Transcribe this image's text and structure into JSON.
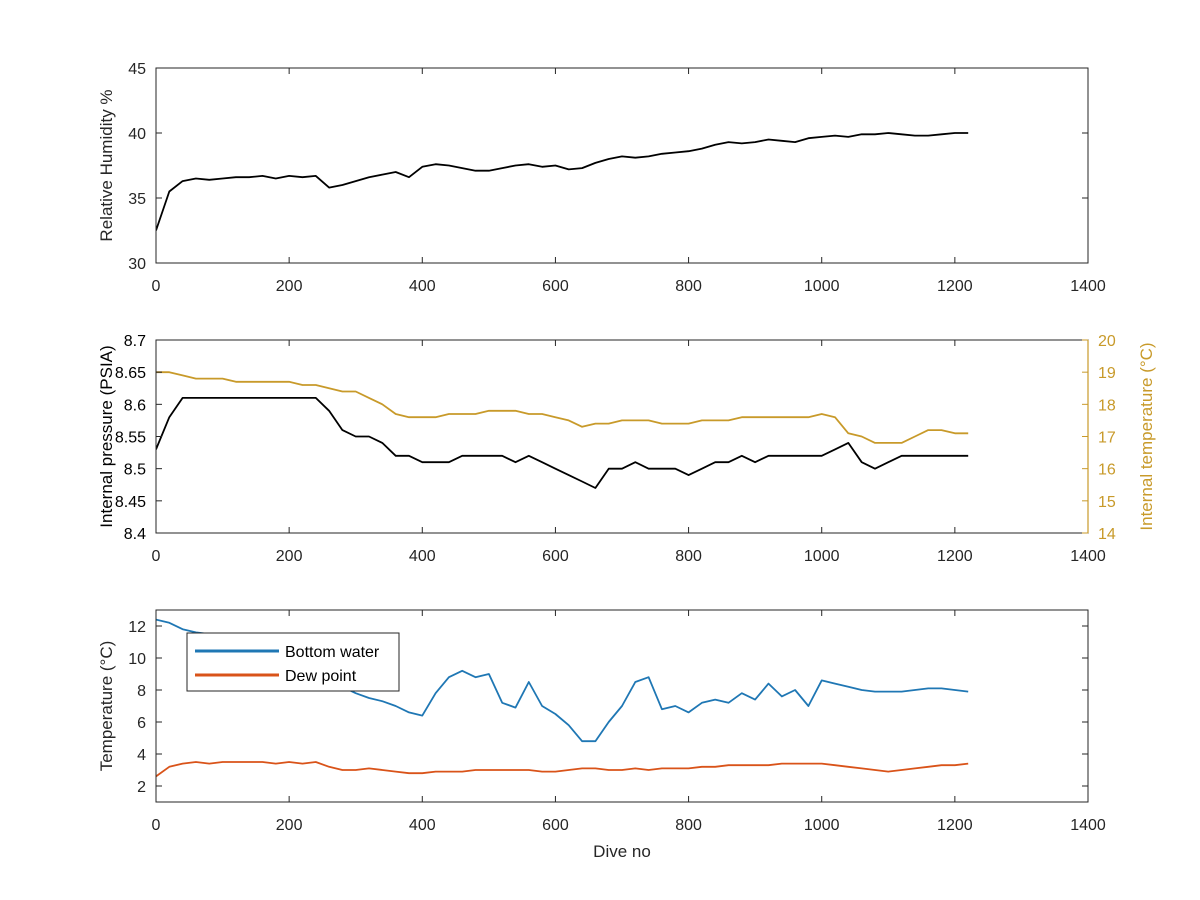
{
  "chart_data": [
    {
      "type": "line",
      "ylabel": "Relative Humidity %",
      "xlim": [
        0,
        1400
      ],
      "ylim": [
        30,
        45
      ],
      "xticks": [
        0,
        200,
        400,
        600,
        800,
        1000,
        1200,
        1400
      ],
      "yticks": [
        30,
        35,
        40,
        45
      ],
      "grid": false,
      "series": [
        {
          "color": "#000000",
          "x": [
            0,
            20,
            40,
            60,
            80,
            100,
            120,
            140,
            160,
            180,
            200,
            220,
            240,
            260,
            280,
            300,
            320,
            340,
            360,
            380,
            400,
            420,
            440,
            460,
            480,
            500,
            520,
            540,
            560,
            580,
            600,
            620,
            640,
            660,
            680,
            700,
            720,
            740,
            760,
            780,
            800,
            820,
            840,
            860,
            880,
            900,
            920,
            940,
            960,
            980,
            1000,
            1020,
            1040,
            1060,
            1080,
            1100,
            1120,
            1140,
            1160,
            1180,
            1200,
            1220
          ],
          "y": [
            32.5,
            35.5,
            36.3,
            36.5,
            36.4,
            36.5,
            36.6,
            36.6,
            36.7,
            36.5,
            36.7,
            36.6,
            36.7,
            35.8,
            36.0,
            36.3,
            36.6,
            36.8,
            37.0,
            36.6,
            37.4,
            37.6,
            37.5,
            37.3,
            37.1,
            37.1,
            37.3,
            37.5,
            37.6,
            37.4,
            37.5,
            37.2,
            37.3,
            37.7,
            38.0,
            38.2,
            38.1,
            38.2,
            38.4,
            38.5,
            38.6,
            38.8,
            39.1,
            39.3,
            39.2,
            39.3,
            39.5,
            39.4,
            39.3,
            39.6,
            39.7,
            39.8,
            39.7,
            39.9,
            39.9,
            40.0,
            39.9,
            39.8,
            39.8,
            39.9,
            40.0,
            40.0
          ]
        }
      ]
    },
    {
      "type": "line",
      "ylabel": "Internal pressure (PSIA)",
      "ylabel_right": "Internal temperature (°C)",
      "xlim": [
        0,
        1400
      ],
      "ylim": [
        8.4,
        8.7
      ],
      "ylim_right": [
        14,
        20
      ],
      "xticks": [
        0,
        200,
        400,
        600,
        800,
        1000,
        1200,
        1400
      ],
      "yticks": [
        8.4,
        8.45,
        8.5,
        8.55,
        8.6,
        8.65,
        8.7
      ],
      "yticks_right": [
        14,
        15,
        16,
        17,
        18,
        19,
        20
      ],
      "grid": false,
      "series": [
        {
          "color": "#000000",
          "axis": "left",
          "x": [
            0,
            20,
            40,
            60,
            80,
            100,
            120,
            140,
            160,
            180,
            200,
            220,
            240,
            260,
            280,
            300,
            320,
            340,
            360,
            380,
            400,
            420,
            440,
            460,
            480,
            500,
            520,
            540,
            560,
            580,
            600,
            620,
            640,
            660,
            680,
            700,
            720,
            740,
            760,
            780,
            800,
            820,
            840,
            860,
            880,
            900,
            920,
            940,
            960,
            980,
            1000,
            1020,
            1040,
            1060,
            1080,
            1100,
            1120,
            1140,
            1160,
            1180,
            1200,
            1220
          ],
          "y": [
            8.53,
            8.58,
            8.61,
            8.61,
            8.61,
            8.61,
            8.61,
            8.61,
            8.61,
            8.61,
            8.61,
            8.61,
            8.61,
            8.59,
            8.56,
            8.55,
            8.55,
            8.54,
            8.52,
            8.52,
            8.51,
            8.51,
            8.51,
            8.52,
            8.52,
            8.52,
            8.52,
            8.51,
            8.52,
            8.51,
            8.5,
            8.49,
            8.48,
            8.47,
            8.5,
            8.5,
            8.51,
            8.5,
            8.5,
            8.5,
            8.49,
            8.5,
            8.51,
            8.51,
            8.52,
            8.51,
            8.52,
            8.52,
            8.52,
            8.52,
            8.52,
            8.53,
            8.54,
            8.51,
            8.5,
            8.51,
            8.52,
            8.52,
            8.52,
            8.52,
            8.52,
            8.52
          ]
        },
        {
          "color": "#c89a2a",
          "axis": "right",
          "x": [
            0,
            20,
            40,
            60,
            80,
            100,
            120,
            140,
            160,
            180,
            200,
            220,
            240,
            260,
            280,
            300,
            320,
            340,
            360,
            380,
            400,
            420,
            440,
            460,
            480,
            500,
            520,
            540,
            560,
            580,
            600,
            620,
            640,
            660,
            680,
            700,
            720,
            740,
            760,
            780,
            800,
            820,
            840,
            860,
            880,
            900,
            920,
            940,
            960,
            980,
            1000,
            1020,
            1040,
            1060,
            1080,
            1100,
            1120,
            1140,
            1160,
            1180,
            1200,
            1220
          ],
          "y": [
            19.0,
            19.0,
            18.9,
            18.8,
            18.8,
            18.8,
            18.7,
            18.7,
            18.7,
            18.7,
            18.7,
            18.6,
            18.6,
            18.5,
            18.4,
            18.4,
            18.2,
            18.0,
            17.7,
            17.6,
            17.6,
            17.6,
            17.7,
            17.7,
            17.7,
            17.8,
            17.8,
            17.8,
            17.7,
            17.7,
            17.6,
            17.5,
            17.3,
            17.4,
            17.4,
            17.5,
            17.5,
            17.5,
            17.4,
            17.4,
            17.4,
            17.5,
            17.5,
            17.5,
            17.6,
            17.6,
            17.6,
            17.6,
            17.6,
            17.6,
            17.7,
            17.6,
            17.1,
            17.0,
            16.8,
            16.8,
            16.8,
            17.0,
            17.2,
            17.2,
            17.1,
            17.1
          ]
        }
      ]
    },
    {
      "type": "line",
      "xlabel": "Dive no",
      "ylabel": "Temperature (°C)",
      "xlim": [
        0,
        1400
      ],
      "ylim": [
        1,
        13
      ],
      "xticks": [
        0,
        200,
        400,
        600,
        800,
        1000,
        1200,
        1400
      ],
      "yticks": [
        2,
        4,
        6,
        8,
        10,
        12
      ],
      "grid": false,
      "legend": "top-left",
      "series": [
        {
          "name": "Bottom water",
          "color": "#1f77b4",
          "x": [
            0,
            20,
            40,
            60,
            80,
            100,
            120,
            140,
            160,
            180,
            200,
            220,
            240,
            260,
            280,
            300,
            320,
            340,
            360,
            380,
            400,
            420,
            440,
            460,
            480,
            500,
            520,
            540,
            560,
            580,
            600,
            620,
            640,
            660,
            680,
            700,
            720,
            740,
            760,
            780,
            800,
            820,
            840,
            860,
            880,
            900,
            920,
            940,
            960,
            980,
            1000,
            1020,
            1040,
            1060,
            1080,
            1100,
            1120,
            1140,
            1160,
            1180,
            1200,
            1220
          ],
          "y": [
            12.4,
            12.2,
            11.8,
            11.6,
            11.5,
            11.3,
            11.2,
            11.2,
            11.3,
            11.3,
            11.2,
            11.1,
            11.2,
            9.5,
            8.2,
            7.8,
            7.5,
            7.3,
            7.0,
            6.6,
            6.4,
            7.8,
            8.8,
            9.2,
            8.8,
            9.0,
            7.2,
            6.9,
            8.5,
            7.0,
            6.5,
            5.8,
            4.8,
            4.8,
            6.0,
            7.0,
            8.5,
            8.8,
            6.8,
            7.0,
            6.6,
            7.2,
            7.4,
            7.2,
            7.8,
            7.4,
            8.4,
            7.6,
            8.0,
            7.0,
            8.6,
            8.4,
            8.2,
            8.0,
            7.9,
            7.9,
            7.9,
            8.0,
            8.1,
            8.1,
            8.0,
            7.9
          ]
        },
        {
          "name": "Dew point",
          "color": "#d95319",
          "x": [
            0,
            20,
            40,
            60,
            80,
            100,
            120,
            140,
            160,
            180,
            200,
            220,
            240,
            260,
            280,
            300,
            320,
            340,
            360,
            380,
            400,
            420,
            440,
            460,
            480,
            500,
            520,
            540,
            560,
            580,
            600,
            620,
            640,
            660,
            680,
            700,
            720,
            740,
            760,
            780,
            800,
            820,
            840,
            860,
            880,
            900,
            920,
            940,
            960,
            980,
            1000,
            1020,
            1040,
            1060,
            1080,
            1100,
            1120,
            1140,
            1160,
            1180,
            1200,
            1220
          ],
          "y": [
            2.6,
            3.2,
            3.4,
            3.5,
            3.4,
            3.5,
            3.5,
            3.5,
            3.5,
            3.4,
            3.5,
            3.4,
            3.5,
            3.2,
            3.0,
            3.0,
            3.1,
            3.0,
            2.9,
            2.8,
            2.8,
            2.9,
            2.9,
            2.9,
            3.0,
            3.0,
            3.0,
            3.0,
            3.0,
            2.9,
            2.9,
            3.0,
            3.1,
            3.1,
            3.0,
            3.0,
            3.1,
            3.0,
            3.1,
            3.1,
            3.1,
            3.2,
            3.2,
            3.3,
            3.3,
            3.3,
            3.3,
            3.4,
            3.4,
            3.4,
            3.4,
            3.3,
            3.2,
            3.1,
            3.0,
            2.9,
            3.0,
            3.1,
            3.2,
            3.3,
            3.3,
            3.4
          ]
        }
      ]
    }
  ]
}
